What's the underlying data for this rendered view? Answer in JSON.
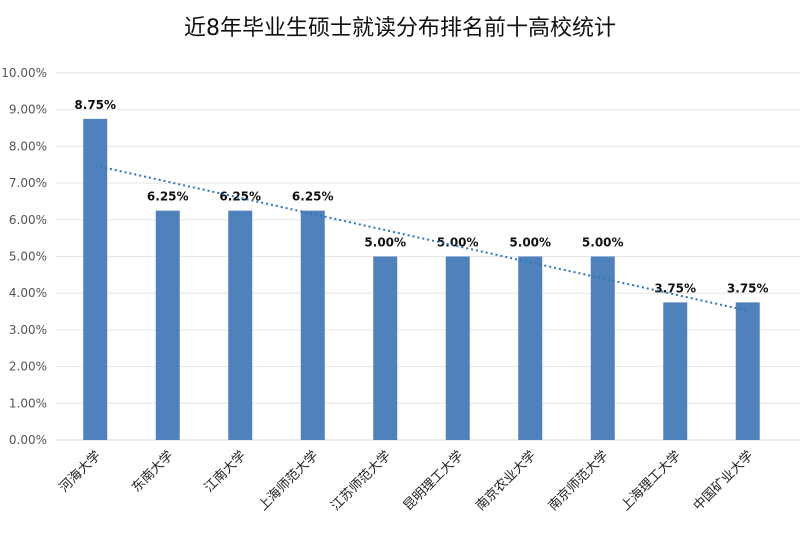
{
  "chart_data": {
    "type": "bar",
    "title": "近8年毕业生硕士就读分布排名前十高校统计",
    "xlabel": "",
    "ylabel": "",
    "categories": [
      "河海大学",
      "东南大学",
      "江南大学",
      "上海师范大学",
      "江苏师范大学",
      "昆明理工大学",
      "南京农业大学",
      "南京师范大学",
      "上海理工大学",
      "中国矿业大学"
    ],
    "values": [
      8.75,
      6.25,
      6.25,
      6.25,
      5.0,
      5.0,
      5.0,
      5.0,
      3.75,
      3.75
    ],
    "data_labels": [
      "8.75%",
      "6.25%",
      "6.25%",
      "6.25%",
      "5.00%",
      "5.00%",
      "5.00%",
      "5.00%",
      "3.75%",
      "3.75%"
    ],
    "yticks": [
      "0.00%",
      "1.00%",
      "2.00%",
      "3.00%",
      "4.00%",
      "5.00%",
      "6.00%",
      "7.00%",
      "8.00%",
      "9.00%",
      "10.00%"
    ],
    "ylim": [
      0,
      10
    ],
    "grid": true,
    "trendline": "linear",
    "bar_color": "#4f81bd",
    "trend_color": "#2e75b6"
  }
}
